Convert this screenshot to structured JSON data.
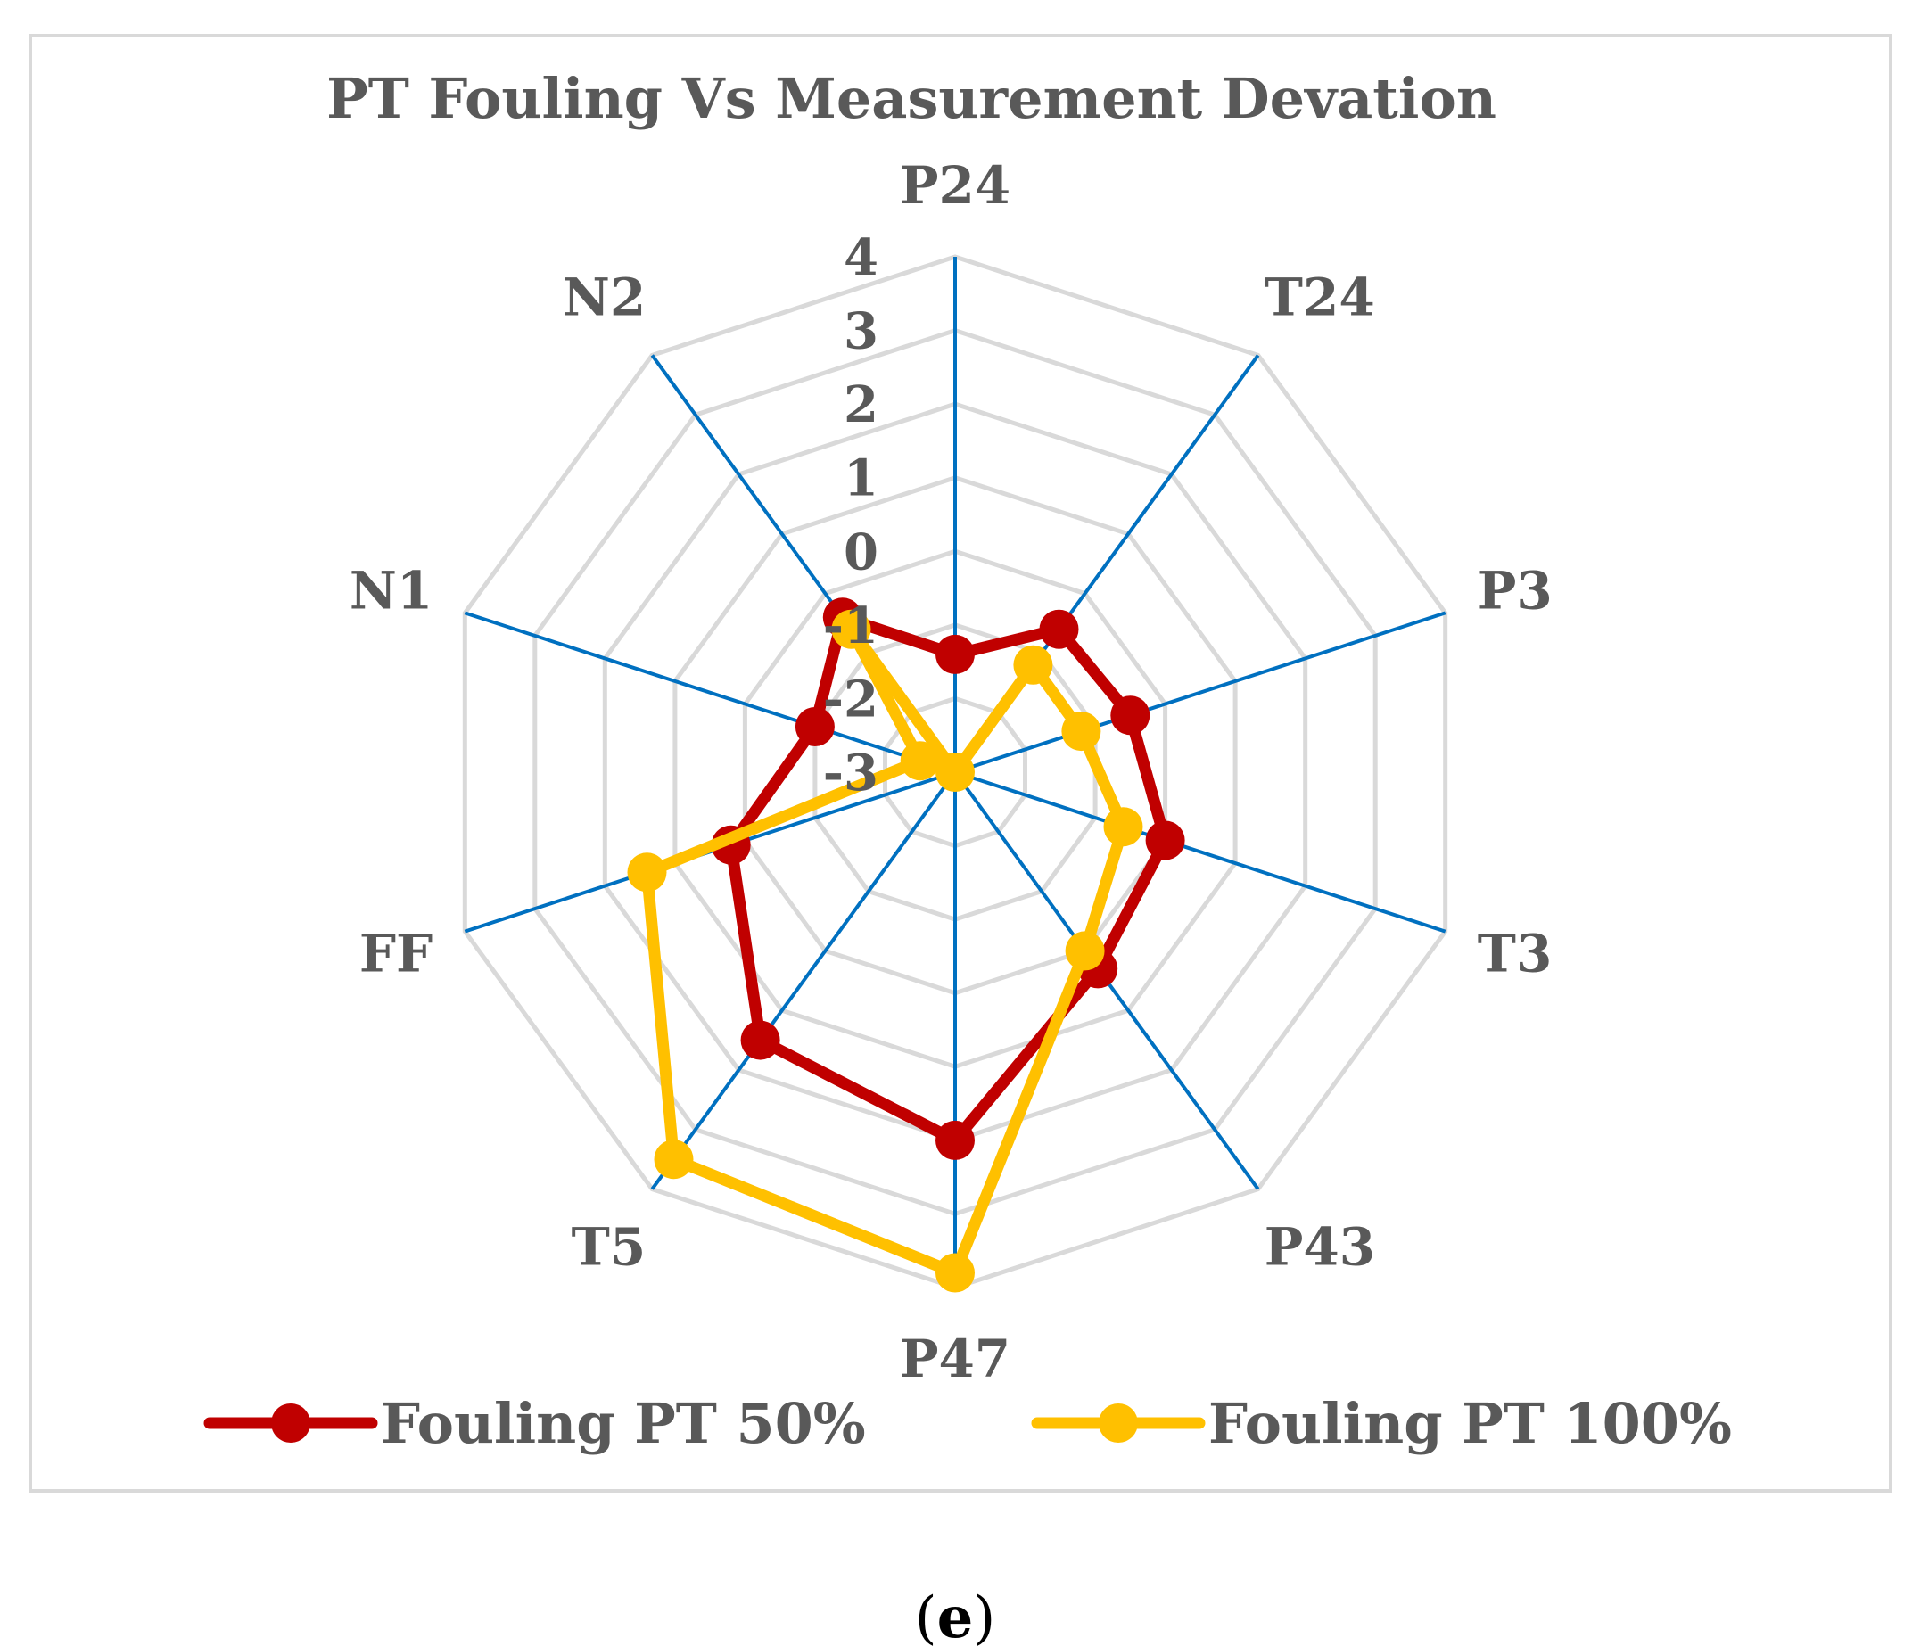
{
  "caption": {
    "open": "(",
    "letter": "e",
    "close": ")"
  },
  "chart_data": {
    "type": "radar",
    "title": "PT Fouling Vs Measurement  Devation",
    "axes": [
      "P24",
      "T24",
      "P3",
      "T3",
      "P43",
      "P47",
      "T5",
      "FF",
      "N1",
      "N2"
    ],
    "rlim": [
      -3,
      4
    ],
    "ticks": [
      "-3",
      "-2",
      "-1",
      "0",
      "1",
      "2",
      "3",
      "4"
    ],
    "tick_values": [
      -3,
      -2,
      -1,
      0,
      1,
      2,
      3,
      4
    ],
    "grid": true,
    "legend_position": "bottom",
    "series": [
      {
        "name": "Fouling PT  50%",
        "color": "#C00000",
        "values": [
          -1.4,
          -0.6,
          -0.5,
          0.0,
          0.3,
          2.0,
          1.5,
          0.2,
          -1.0,
          -0.4
        ]
      },
      {
        "name": "Fouling PT  100%",
        "color": "#FFC000",
        "values": [
          -3.0,
          -1.2,
          -1.2,
          -0.6,
          0.0,
          3.8,
          3.5,
          1.4,
          -2.5,
          -0.6
        ]
      }
    ]
  },
  "colors": {
    "grid": "#D9D9D9",
    "spoke": "#0070C0",
    "frame": "#D9D9D9",
    "text": "#595959"
  }
}
